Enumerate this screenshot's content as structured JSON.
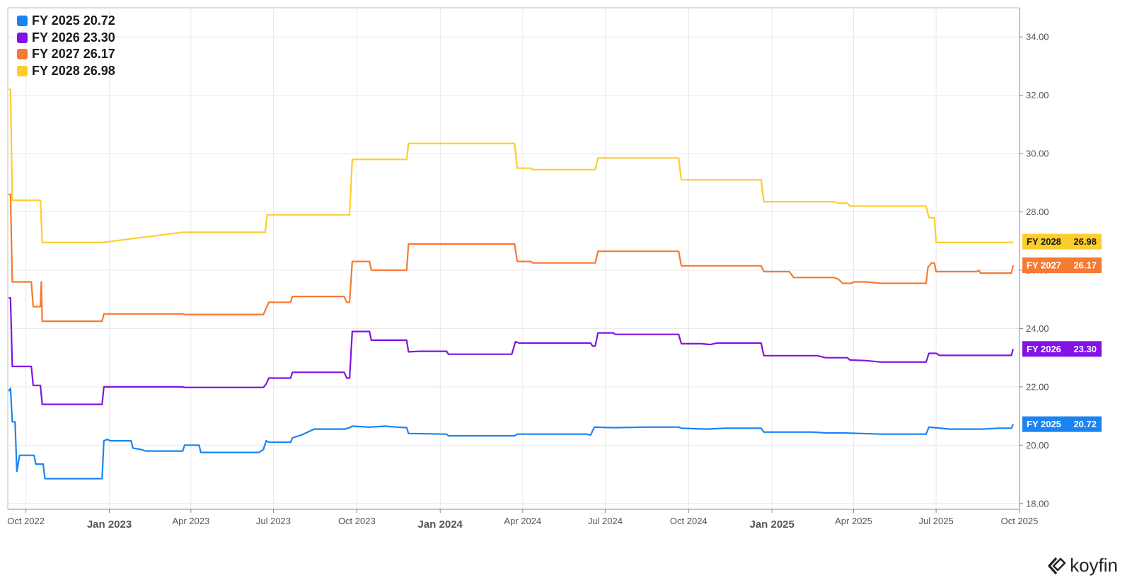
{
  "chart_data": {
    "type": "line",
    "x_range": [
      "2022-09-11",
      "2025-10-01"
    ],
    "ylim": [
      17.8,
      35.0
    ],
    "y_ticks": [
      "18.00",
      "20.00",
      "22.00",
      "24.00",
      "26.00",
      "28.00",
      "30.00",
      "32.00",
      "34.00"
    ],
    "x_ticks": [
      {
        "label": "Oct 2022",
        "date": "2022-10-01",
        "year": false
      },
      {
        "label": "Jan 2023",
        "date": "2023-01-01",
        "year": true
      },
      {
        "label": "Apr 2023",
        "date": "2023-04-01",
        "year": false
      },
      {
        "label": "Jul 2023",
        "date": "2023-07-01",
        "year": false
      },
      {
        "label": "Oct 2023",
        "date": "2023-10-01",
        "year": false
      },
      {
        "label": "Jan 2024",
        "date": "2024-01-01",
        "year": true
      },
      {
        "label": "Apr 2024",
        "date": "2024-04-01",
        "year": false
      },
      {
        "label": "Jul 2024",
        "date": "2024-07-01",
        "year": false
      },
      {
        "label": "Oct 2024",
        "date": "2024-10-01",
        "year": false
      },
      {
        "label": "Jan 2025",
        "date": "2025-01-01",
        "year": true
      },
      {
        "label": "Apr 2025",
        "date": "2025-04-01",
        "year": false
      },
      {
        "label": "Jul 2025",
        "date": "2025-07-01",
        "year": false
      },
      {
        "label": "Oct 2025",
        "date": "2025-10-01",
        "year": false
      }
    ],
    "grid": true,
    "legend_position": "top-left",
    "series": [
      {
        "name": "FY 2025",
        "value_label": "20.72",
        "color": "#1a84f2",
        "points": [
          [
            "2022-09-12",
            21.85
          ],
          [
            "2022-09-14",
            21.95
          ],
          [
            "2022-09-16",
            20.8
          ],
          [
            "2022-09-19",
            20.8
          ],
          [
            "2022-09-21",
            19.1
          ],
          [
            "2022-09-24",
            19.65
          ],
          [
            "2022-10-10",
            19.65
          ],
          [
            "2022-10-12",
            19.35
          ],
          [
            "2022-10-20",
            19.35
          ],
          [
            "2022-10-22",
            18.85
          ],
          [
            "2022-12-24",
            18.85
          ],
          [
            "2022-12-26",
            20.15
          ],
          [
            "2022-12-30",
            20.2
          ],
          [
            "2023-01-02",
            20.15
          ],
          [
            "2023-01-25",
            20.15
          ],
          [
            "2023-01-27",
            19.9
          ],
          [
            "2023-02-05",
            19.85
          ],
          [
            "2023-02-10",
            19.8
          ],
          [
            "2023-03-23",
            19.8
          ],
          [
            "2023-03-25",
            20.0
          ],
          [
            "2023-04-10",
            20.0
          ],
          [
            "2023-04-12",
            19.75
          ],
          [
            "2023-06-15",
            19.75
          ],
          [
            "2023-06-20",
            19.85
          ],
          [
            "2023-06-23",
            20.15
          ],
          [
            "2023-06-26",
            20.1
          ],
          [
            "2023-07-20",
            20.1
          ],
          [
            "2023-07-22",
            20.25
          ],
          [
            "2023-08-01",
            20.35
          ],
          [
            "2023-08-15",
            20.55
          ],
          [
            "2023-09-18",
            20.55
          ],
          [
            "2023-09-23",
            20.6
          ],
          [
            "2023-09-26",
            20.65
          ],
          [
            "2023-10-15",
            20.62
          ],
          [
            "2023-11-01",
            20.65
          ],
          [
            "2023-11-15",
            20.62
          ],
          [
            "2023-11-25",
            20.6
          ],
          [
            "2023-11-27",
            20.4
          ],
          [
            "2024-01-08",
            20.38
          ],
          [
            "2024-01-10",
            20.32
          ],
          [
            "2024-03-23",
            20.32
          ],
          [
            "2024-03-26",
            20.38
          ],
          [
            "2024-06-10",
            20.38
          ],
          [
            "2024-06-15",
            20.35
          ],
          [
            "2024-06-19",
            20.62
          ],
          [
            "2024-07-10",
            20.6
          ],
          [
            "2024-08-15",
            20.62
          ],
          [
            "2024-09-20",
            20.62
          ],
          [
            "2024-09-23",
            20.58
          ],
          [
            "2024-10-20",
            20.55
          ],
          [
            "2024-11-10",
            20.58
          ],
          [
            "2024-12-20",
            20.58
          ],
          [
            "2024-12-23",
            20.45
          ],
          [
            "2025-02-15",
            20.45
          ],
          [
            "2025-03-01",
            20.42
          ],
          [
            "2025-03-20",
            20.42
          ],
          [
            "2025-05-01",
            20.38
          ],
          [
            "2025-06-20",
            20.38
          ],
          [
            "2025-06-23",
            20.62
          ],
          [
            "2025-06-30",
            20.6
          ],
          [
            "2025-07-15",
            20.55
          ],
          [
            "2025-08-20",
            20.55
          ],
          [
            "2025-09-08",
            20.58
          ],
          [
            "2025-09-22",
            20.58
          ],
          [
            "2025-09-24",
            20.72
          ]
        ]
      },
      {
        "name": "FY 2026",
        "value_label": "23.30",
        "color": "#8212e6",
        "points": [
          [
            "2022-09-12",
            25.05
          ],
          [
            "2022-09-14",
            25.05
          ],
          [
            "2022-09-16",
            22.7
          ],
          [
            "2022-10-07",
            22.7
          ],
          [
            "2022-10-09",
            22.05
          ],
          [
            "2022-10-17",
            22.05
          ],
          [
            "2022-10-19",
            21.4
          ],
          [
            "2022-12-24",
            21.4
          ],
          [
            "2022-12-26",
            22.0
          ],
          [
            "2023-03-23",
            22.0
          ],
          [
            "2023-03-25",
            21.98
          ],
          [
            "2023-06-20",
            21.98
          ],
          [
            "2023-06-23",
            22.1
          ],
          [
            "2023-06-26",
            22.3
          ],
          [
            "2023-07-20",
            22.3
          ],
          [
            "2023-07-22",
            22.5
          ],
          [
            "2023-09-17",
            22.5
          ],
          [
            "2023-09-20",
            22.3
          ],
          [
            "2023-09-23",
            22.3
          ],
          [
            "2023-09-26",
            23.9
          ],
          [
            "2023-10-15",
            23.9
          ],
          [
            "2023-10-17",
            23.6
          ],
          [
            "2023-11-25",
            23.6
          ],
          [
            "2023-11-27",
            23.2
          ],
          [
            "2023-12-10",
            23.22
          ],
          [
            "2024-01-08",
            23.22
          ],
          [
            "2024-01-10",
            23.12
          ],
          [
            "2024-03-20",
            23.12
          ],
          [
            "2024-03-24",
            23.55
          ],
          [
            "2024-03-28",
            23.5
          ],
          [
            "2024-06-15",
            23.5
          ],
          [
            "2024-06-17",
            23.4
          ],
          [
            "2024-06-20",
            23.4
          ],
          [
            "2024-06-23",
            23.85
          ],
          [
            "2024-07-10",
            23.85
          ],
          [
            "2024-07-12",
            23.8
          ],
          [
            "2024-09-20",
            23.8
          ],
          [
            "2024-09-23",
            23.48
          ],
          [
            "2024-10-15",
            23.48
          ],
          [
            "2024-10-25",
            23.45
          ],
          [
            "2024-11-01",
            23.5
          ],
          [
            "2024-12-20",
            23.5
          ],
          [
            "2024-12-23",
            23.07
          ],
          [
            "2025-02-20",
            23.07
          ],
          [
            "2025-03-01",
            23.0
          ],
          [
            "2025-03-25",
            23.0
          ],
          [
            "2025-03-28",
            22.92
          ],
          [
            "2025-04-15",
            22.9
          ],
          [
            "2025-05-01",
            22.85
          ],
          [
            "2025-06-20",
            22.85
          ],
          [
            "2025-06-23",
            23.15
          ],
          [
            "2025-07-01",
            23.15
          ],
          [
            "2025-07-05",
            23.08
          ],
          [
            "2025-08-15",
            23.08
          ],
          [
            "2025-09-22",
            23.08
          ],
          [
            "2025-09-24",
            23.3
          ]
        ]
      },
      {
        "name": "FY 2027",
        "value_label": "26.17",
        "color": "#f57a32",
        "points": [
          [
            "2022-09-12",
            28.6
          ],
          [
            "2022-09-14",
            28.6
          ],
          [
            "2022-09-16",
            25.6
          ],
          [
            "2022-10-07",
            25.6
          ],
          [
            "2022-10-09",
            24.75
          ],
          [
            "2022-10-17",
            24.75
          ],
          [
            "2022-10-18",
            25.6
          ],
          [
            "2022-10-19",
            24.25
          ],
          [
            "2022-12-24",
            24.25
          ],
          [
            "2022-12-26",
            24.5
          ],
          [
            "2023-03-23",
            24.5
          ],
          [
            "2023-03-25",
            24.48
          ],
          [
            "2023-06-20",
            24.48
          ],
          [
            "2023-06-23",
            24.7
          ],
          [
            "2023-06-26",
            24.9
          ],
          [
            "2023-07-20",
            24.9
          ],
          [
            "2023-07-22",
            25.1
          ],
          [
            "2023-09-17",
            25.1
          ],
          [
            "2023-09-20",
            24.9
          ],
          [
            "2023-09-23",
            24.9
          ],
          [
            "2023-09-26",
            26.3
          ],
          [
            "2023-10-15",
            26.3
          ],
          [
            "2023-10-17",
            26.0
          ],
          [
            "2023-11-25",
            26.0
          ],
          [
            "2023-11-27",
            26.9
          ],
          [
            "2024-03-23",
            26.9
          ],
          [
            "2024-03-26",
            26.3
          ],
          [
            "2024-04-10",
            26.3
          ],
          [
            "2024-04-12",
            26.25
          ],
          [
            "2024-06-20",
            26.25
          ],
          [
            "2024-06-23",
            26.65
          ],
          [
            "2024-09-20",
            26.65
          ],
          [
            "2024-09-23",
            26.15
          ],
          [
            "2024-12-20",
            26.15
          ],
          [
            "2024-12-23",
            25.95
          ],
          [
            "2025-01-20",
            25.95
          ],
          [
            "2025-01-25",
            25.75
          ],
          [
            "2025-03-10",
            25.75
          ],
          [
            "2025-03-15",
            25.7
          ],
          [
            "2025-03-20",
            25.55
          ],
          [
            "2025-03-30",
            25.55
          ],
          [
            "2025-04-01",
            25.6
          ],
          [
            "2025-04-15",
            25.6
          ],
          [
            "2025-05-01",
            25.55
          ],
          [
            "2025-06-20",
            25.55
          ],
          [
            "2025-06-22",
            26.1
          ],
          [
            "2025-06-26",
            26.25
          ],
          [
            "2025-06-29",
            26.25
          ],
          [
            "2025-07-01",
            25.95
          ],
          [
            "2025-08-15",
            25.95
          ],
          [
            "2025-08-17",
            26.0
          ],
          [
            "2025-08-19",
            25.9
          ],
          [
            "2025-09-22",
            25.9
          ],
          [
            "2025-09-24",
            26.17
          ]
        ]
      },
      {
        "name": "FY 2028",
        "value_label": "26.98",
        "color": "#fdcd2c",
        "points": [
          [
            "2022-09-12",
            32.2
          ],
          [
            "2022-09-14",
            32.2
          ],
          [
            "2022-09-16",
            28.4
          ],
          [
            "2022-10-17",
            28.4
          ],
          [
            "2022-10-19",
            26.95
          ],
          [
            "2022-12-24",
            26.95
          ],
          [
            "2023-03-23",
            27.3
          ],
          [
            "2023-06-22",
            27.3
          ],
          [
            "2023-06-24",
            27.9
          ],
          [
            "2023-09-23",
            27.9
          ],
          [
            "2023-09-26",
            29.8
          ],
          [
            "2023-11-25",
            29.8
          ],
          [
            "2023-11-27",
            30.35
          ],
          [
            "2024-03-23",
            30.35
          ],
          [
            "2024-03-26",
            29.5
          ],
          [
            "2024-04-10",
            29.5
          ],
          [
            "2024-04-12",
            29.45
          ],
          [
            "2024-06-20",
            29.45
          ],
          [
            "2024-06-23",
            29.85
          ],
          [
            "2024-09-20",
            29.85
          ],
          [
            "2024-09-23",
            29.1
          ],
          [
            "2024-12-20",
            29.1
          ],
          [
            "2024-12-23",
            28.35
          ],
          [
            "2025-03-10",
            28.35
          ],
          [
            "2025-03-15",
            28.3
          ],
          [
            "2025-03-25",
            28.3
          ],
          [
            "2025-03-28",
            28.2
          ],
          [
            "2025-06-20",
            28.2
          ],
          [
            "2025-06-23",
            27.8
          ],
          [
            "2025-06-29",
            27.8
          ],
          [
            "2025-07-01",
            26.95
          ],
          [
            "2025-09-22",
            26.95
          ],
          [
            "2025-09-24",
            26.98
          ]
        ]
      }
    ]
  },
  "brand": {
    "name": "koyfin"
  }
}
